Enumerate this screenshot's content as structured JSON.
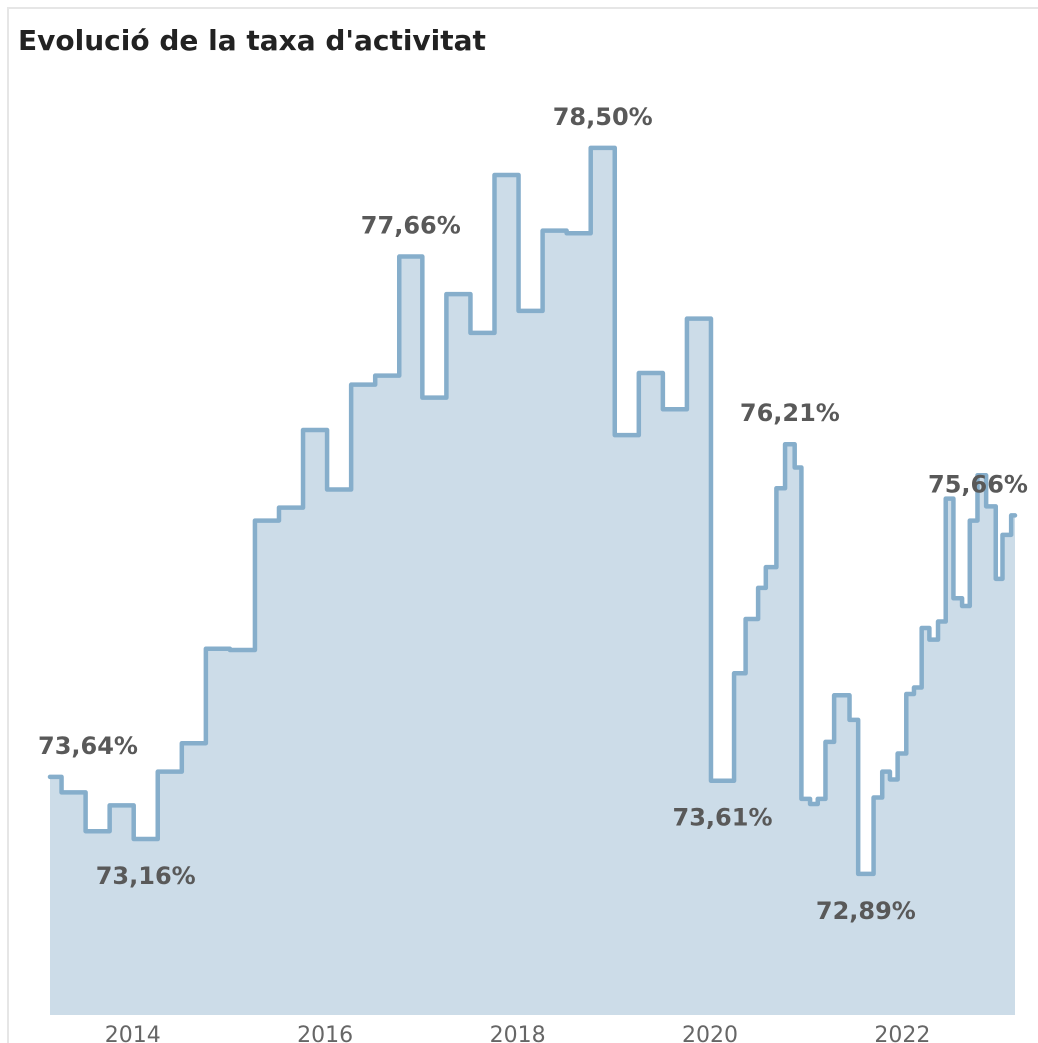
{
  "chart_data": {
    "type": "step-area",
    "title": "Evolució de la taxa d'activitat",
    "x": [
      2013.14,
      2013.26,
      2013.51,
      2013.76,
      2014.01,
      2014.26,
      2014.51,
      2014.76,
      2015.01,
      2015.27,
      2015.52,
      2015.77,
      2016.02,
      2016.27,
      2016.52,
      2016.77,
      2017.01,
      2017.26,
      2017.51,
      2017.76,
      2018.01,
      2018.26,
      2018.51,
      2018.76,
      2019.01,
      2019.26,
      2019.51,
      2019.76,
      2020.01,
      2020.25,
      2020.37,
      2020.5,
      2020.58,
      2020.69,
      2020.78,
      2020.88,
      2020.95,
      2021.04,
      2021.12,
      2021.2,
      2021.29,
      2021.45,
      2021.54,
      2021.7,
      2021.79,
      2021.87,
      2021.95,
      2022.04,
      2022.12,
      2022.2,
      2022.28,
      2022.37,
      2022.45,
      2022.53,
      2022.62,
      2022.7,
      2022.78,
      2022.87,
      2022.97,
      2023.04,
      2023.13
    ],
    "values": [
      73.64,
      73.52,
      73.22,
      73.42,
      73.16,
      73.68,
      73.9,
      74.63,
      74.62,
      75.62,
      75.72,
      76.32,
      75.86,
      76.67,
      76.74,
      77.66,
      76.57,
      77.37,
      77.07,
      78.29,
      77.24,
      77.86,
      77.84,
      78.5,
      76.28,
      76.76,
      76.48,
      77.18,
      73.61,
      74.44,
      74.86,
      75.1,
      75.26,
      75.87,
      76.21,
      76.03,
      73.47,
      73.43,
      73.47,
      73.91,
      74.27,
      74.08,
      72.89,
      73.48,
      73.68,
      73.62,
      73.82,
      74.28,
      74.33,
      74.79,
      74.7,
      74.84,
      75.79,
      75.02,
      74.96,
      75.62,
      75.97,
      75.73,
      75.17,
      75.51,
      75.66
    ],
    "value_labels": [
      "73,64%",
      null,
      null,
      null,
      "73,16%",
      null,
      null,
      null,
      null,
      null,
      null,
      null,
      null,
      null,
      null,
      "77,66%",
      null,
      null,
      null,
      null,
      null,
      null,
      null,
      "78,50%",
      null,
      null,
      null,
      null,
      "73,61%",
      null,
      null,
      null,
      null,
      null,
      "76,21%",
      null,
      null,
      null,
      null,
      null,
      null,
      null,
      "72,89%",
      null,
      null,
      null,
      null,
      null,
      null,
      null,
      null,
      null,
      null,
      null,
      null,
      null,
      null,
      null,
      null,
      null,
      "75,66%"
    ],
    "line_color": "#86aecb",
    "fill_color": "#ccdce8",
    "xlim": [
      2013.14,
      2023.17
    ],
    "xticks": [
      2014,
      2016,
      2018,
      2020,
      2022
    ],
    "ylim": [
      71.8,
      78.8
    ]
  }
}
